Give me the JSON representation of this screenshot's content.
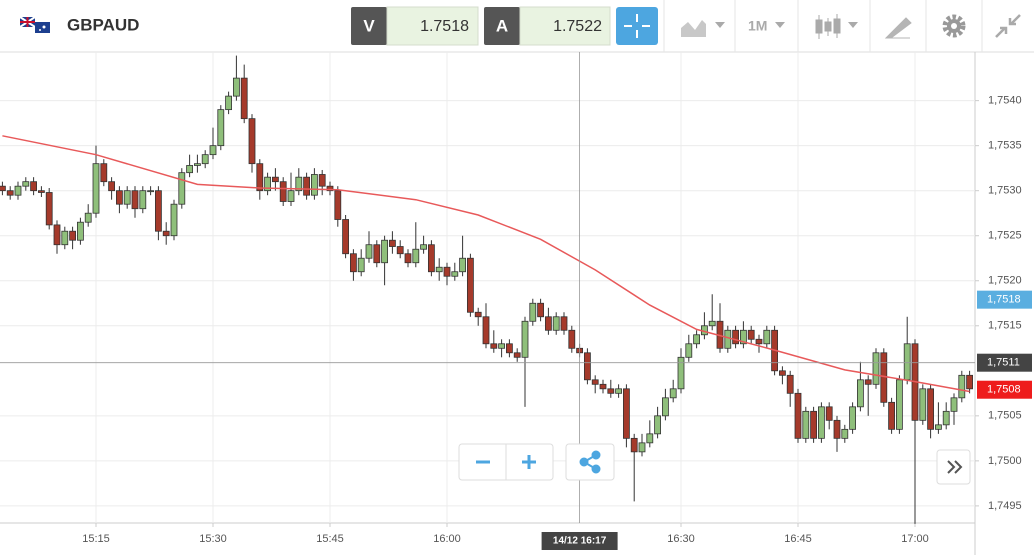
{
  "header": {
    "symbol": "GBPAUD",
    "bid_label": "V",
    "bid": "1.7518",
    "ask_label": "A",
    "ask": "1.7522",
    "timeframe": "1M"
  },
  "chart_data": {
    "type": "candlestick",
    "x": [
      "15:03",
      "15:04",
      "15:05",
      "15:06",
      "15:07",
      "15:08",
      "15:09",
      "15:10",
      "15:11",
      "15:12",
      "15:13",
      "15:14",
      "15:15",
      "15:16",
      "15:17",
      "15:18",
      "15:19",
      "15:20",
      "15:21",
      "15:22",
      "15:23",
      "15:24",
      "15:25",
      "15:26",
      "15:27",
      "15:28",
      "15:29",
      "15:30",
      "15:31",
      "15:32",
      "15:33",
      "15:34",
      "15:35",
      "15:36",
      "15:37",
      "15:38",
      "15:39",
      "15:40",
      "15:41",
      "15:42",
      "15:43",
      "15:44",
      "15:45",
      "15:46",
      "15:47",
      "15:48",
      "15:49",
      "15:50",
      "15:51",
      "15:52",
      "15:53",
      "15:54",
      "15:55",
      "15:56",
      "15:57",
      "15:58",
      "15:59",
      "16:00",
      "16:01",
      "16:02",
      "16:03",
      "16:04",
      "16:05",
      "16:06",
      "16:07",
      "16:08",
      "16:09",
      "16:10",
      "16:11",
      "16:12",
      "16:13",
      "16:14",
      "16:15",
      "16:16",
      "16:17",
      "16:18",
      "16:19",
      "16:20",
      "16:21",
      "16:22",
      "16:23",
      "16:24",
      "16:25",
      "16:26",
      "16:27",
      "16:28",
      "16:29",
      "16:30",
      "16:31",
      "16:32",
      "16:33",
      "16:34",
      "16:35",
      "16:36",
      "16:37",
      "16:38",
      "16:39",
      "16:40",
      "16:41",
      "16:42",
      "16:43",
      "16:44",
      "16:45",
      "16:46",
      "16:47",
      "16:48",
      "16:49",
      "16:50",
      "16:51",
      "16:52",
      "16:53",
      "16:54",
      "16:55",
      "16:56",
      "16:57",
      "16:58",
      "16:59",
      "17:00",
      "17:01",
      "17:02",
      "17:03",
      "17:04",
      "17:05",
      "17:06",
      "17:07"
    ],
    "open": [
      1.75305,
      1.753,
      1.75295,
      1.75305,
      1.7531,
      1.753,
      1.75298,
      1.75262,
      1.7524,
      1.75255,
      1.75245,
      1.75265,
      1.75275,
      1.7533,
      1.7531,
      1.753,
      1.75285,
      1.753,
      1.7528,
      1.753,
      1.753,
      1.75255,
      1.7525,
      1.75285,
      1.7532,
      1.75328,
      1.7533,
      1.7534,
      1.7535,
      1.7539,
      1.75405,
      1.75425,
      1.7538,
      1.7533,
      1.753,
      1.75315,
      1.7531,
      1.75288,
      1.753,
      1.75315,
      1.75295,
      1.75318,
      1.75305,
      1.753,
      1.75268,
      1.7523,
      1.7521,
      1.75225,
      1.7524,
      1.7522,
      1.75245,
      1.75238,
      1.7523,
      1.7522,
      1.75235,
      1.7524,
      1.7521,
      1.75215,
      1.75205,
      1.7521,
      1.75225,
      1.75165,
      1.7516,
      1.7513,
      1.75125,
      1.7513,
      1.7512,
      1.75115,
      1.75155,
      1.75175,
      1.7516,
      1.75145,
      1.7516,
      1.75145,
      1.75125,
      1.7512,
      1.7509,
      1.75085,
      1.7508,
      1.75075,
      1.7508,
      1.75025,
      1.7501,
      1.7502,
      1.7503,
      1.7505,
      1.7507,
      1.7508,
      1.75115,
      1.7513,
      1.7514,
      1.7515,
      1.75155,
      1.75125,
      1.75145,
      1.7513,
      1.75145,
      1.75135,
      1.7513,
      1.75145,
      1.751,
      1.75095,
      1.75075,
      1.75025,
      1.75055,
      1.75025,
      1.7506,
      1.75045,
      1.75025,
      1.75035,
      1.7506,
      1.7509,
      1.75085,
      1.7512,
      1.75065,
      1.75035,
      1.7509,
      1.7513,
      1.75045,
      1.7508,
      1.75035,
      1.7504,
      1.75055,
      1.7507,
      1.75095
    ],
    "high": [
      1.7531,
      1.75305,
      1.7531,
      1.75315,
      1.75315,
      1.75305,
      1.75303,
      1.75267,
      1.7526,
      1.7526,
      1.7527,
      1.75285,
      1.7535,
      1.75335,
      1.75315,
      1.75305,
      1.75305,
      1.75305,
      1.75305,
      1.75305,
      1.75305,
      1.75265,
      1.7529,
      1.75325,
      1.7534,
      1.7534,
      1.75345,
      1.7537,
      1.75395,
      1.7541,
      1.7545,
      1.7544,
      1.75385,
      1.75335,
      1.7532,
      1.75325,
      1.75315,
      1.7532,
      1.75325,
      1.7532,
      1.75325,
      1.75323,
      1.7531,
      1.75305,
      1.75273,
      1.75235,
      1.75235,
      1.75255,
      1.75245,
      1.7525,
      1.75255,
      1.75245,
      1.75235,
      1.75265,
      1.7525,
      1.75245,
      1.75225,
      1.7522,
      1.7522,
      1.7525,
      1.7523,
      1.7517,
      1.75175,
      1.75145,
      1.75135,
      1.75135,
      1.75125,
      1.7516,
      1.7518,
      1.7518,
      1.7517,
      1.75165,
      1.75165,
      1.7515,
      1.7513,
      1.75125,
      1.75095,
      1.7509,
      1.7509,
      1.75085,
      1.75085,
      1.7503,
      1.7503,
      1.75045,
      1.7506,
      1.7508,
      1.7509,
      1.75125,
      1.7514,
      1.75145,
      1.75165,
      1.75185,
      1.75175,
      1.7515,
      1.7515,
      1.75155,
      1.7515,
      1.7514,
      1.7515,
      1.7515,
      1.75105,
      1.751,
      1.7508,
      1.7506,
      1.7506,
      1.75065,
      1.75065,
      1.7505,
      1.7504,
      1.75065,
      1.7511,
      1.75095,
      1.75125,
      1.75125,
      1.7507,
      1.75095,
      1.7516,
      1.75135,
      1.75085,
      1.75085,
      1.75065,
      1.75065,
      1.75075,
      1.751,
      1.751
    ],
    "low": [
      1.75295,
      1.7529,
      1.7529,
      1.753,
      1.75295,
      1.75293,
      1.75257,
      1.7523,
      1.75235,
      1.75235,
      1.7524,
      1.7526,
      1.7527,
      1.75305,
      1.7529,
      1.75275,
      1.7528,
      1.7527,
      1.75275,
      1.75295,
      1.75245,
      1.7524,
      1.75245,
      1.7528,
      1.75315,
      1.7532,
      1.75325,
      1.75335,
      1.75345,
      1.75385,
      1.754,
      1.75375,
      1.7532,
      1.7529,
      1.75295,
      1.753,
      1.75283,
      1.75283,
      1.75295,
      1.7529,
      1.7529,
      1.75295,
      1.75295,
      1.7526,
      1.75225,
      1.752,
      1.75205,
      1.7522,
      1.75215,
      1.75195,
      1.7523,
      1.75225,
      1.75215,
      1.75215,
      1.7523,
      1.75205,
      1.752,
      1.75195,
      1.752,
      1.75205,
      1.7516,
      1.7515,
      1.75125,
      1.7512,
      1.75115,
      1.75115,
      1.7511,
      1.7506,
      1.7515,
      1.75155,
      1.7514,
      1.7514,
      1.7514,
      1.7512,
      1.75115,
      1.75085,
      1.75075,
      1.75075,
      1.7507,
      1.7507,
      1.75015,
      1.74955,
      1.75005,
      1.75015,
      1.75025,
      1.75045,
      1.75065,
      1.75075,
      1.7511,
      1.75125,
      1.75135,
      1.75145,
      1.7512,
      1.7512,
      1.75125,
      1.75125,
      1.7513,
      1.7512,
      1.75125,
      1.75095,
      1.75085,
      1.7506,
      1.7502,
      1.7502,
      1.7502,
      1.7502,
      1.75035,
      1.7501,
      1.7502,
      1.7503,
      1.75055,
      1.7505,
      1.7508,
      1.7506,
      1.7503,
      1.7503,
      1.75085,
      1.7493,
      1.7504,
      1.75025,
      1.7503,
      1.75035,
      1.7504,
      1.75065,
      1.75075
    ],
    "close": [
      1.753,
      1.75295,
      1.75305,
      1.7531,
      1.753,
      1.75298,
      1.75262,
      1.7524,
      1.75255,
      1.75245,
      1.75265,
      1.75275,
      1.7533,
      1.7531,
      1.753,
      1.75285,
      1.753,
      1.7528,
      1.753,
      1.753,
      1.75255,
      1.7525,
      1.75285,
      1.7532,
      1.75328,
      1.7533,
      1.7534,
      1.7535,
      1.7539,
      1.75405,
      1.75425,
      1.7538,
      1.7533,
      1.753,
      1.75315,
      1.7531,
      1.75288,
      1.753,
      1.75315,
      1.75295,
      1.75318,
      1.75305,
      1.753,
      1.75268,
      1.7523,
      1.7521,
      1.75225,
      1.7524,
      1.7522,
      1.75245,
      1.75238,
      1.7523,
      1.7522,
      1.75235,
      1.7524,
      1.7521,
      1.75215,
      1.75205,
      1.7521,
      1.75225,
      1.75165,
      1.7516,
      1.7513,
      1.75125,
      1.7513,
      1.7512,
      1.75115,
      1.75155,
      1.75175,
      1.7516,
      1.75145,
      1.7516,
      1.75145,
      1.75125,
      1.7512,
      1.7509,
      1.75085,
      1.7508,
      1.75075,
      1.7508,
      1.75025,
      1.7501,
      1.7502,
      1.7503,
      1.7505,
      1.7507,
      1.7508,
      1.75115,
      1.7513,
      1.7514,
      1.7515,
      1.75155,
      1.75125,
      1.75145,
      1.7513,
      1.75145,
      1.75135,
      1.7513,
      1.75145,
      1.751,
      1.75095,
      1.75075,
      1.75025,
      1.75055,
      1.75025,
      1.7506,
      1.75045,
      1.75025,
      1.75035,
      1.7506,
      1.7509,
      1.75085,
      1.7512,
      1.75065,
      1.75035,
      1.7509,
      1.7513,
      1.75045,
      1.7508,
      1.75035,
      1.7504,
      1.75055,
      1.7507,
      1.75095,
      1.7508
    ],
    "up_color": "#8fbf7b",
    "down_color": "#a53a2b",
    "moving_average": {
      "color": "#e8595a",
      "x": [
        "15:03",
        "15:15",
        "15:28",
        "15:36",
        "15:46",
        "15:56",
        "16:04",
        "16:12",
        "16:19",
        "16:26",
        "16:32",
        "16:42",
        "16:51",
        "17:00",
        "17:07"
      ],
      "values": [
        1.75361,
        1.7534,
        1.75307,
        1.75303,
        1.75301,
        1.7529,
        1.75273,
        1.75246,
        1.75212,
        1.75173,
        1.75146,
        1.75123,
        1.75101,
        1.75088,
        1.75077
      ]
    },
    "ylim": [
      1.74931,
      1.75454
    ],
    "yticks": [
      {
        "value": 1.754,
        "label": "1,7540"
      },
      {
        "value": 1.7535,
        "label": "1,7535"
      },
      {
        "value": 1.753,
        "label": "1,7530"
      },
      {
        "value": 1.7525,
        "label": "1,7525"
      },
      {
        "value": 1.752,
        "label": "1,7520"
      },
      {
        "value": 1.7515,
        "label": "1,7515"
      },
      {
        "value": 1.7505,
        "label": "1,7505"
      },
      {
        "value": 1.75,
        "label": "1,7500"
      },
      {
        "value": 1.7495,
        "label": "1,7495"
      }
    ],
    "xticks": [
      "15:15",
      "15:30",
      "15:45",
      "16:00",
      "16:30",
      "16:45",
      "17:00"
    ],
    "grid": true,
    "price_markers": [
      {
        "value": 1.75179,
        "label": "1,7518",
        "color": "#5aaee0"
      },
      {
        "value": 1.75079,
        "label": "1,7508",
        "color": "#ee1c1c"
      }
    ],
    "crosshair": {
      "x": "16:17",
      "label": "14/12 16:17",
      "value": 1.75109,
      "value_label": "1,7511"
    }
  }
}
